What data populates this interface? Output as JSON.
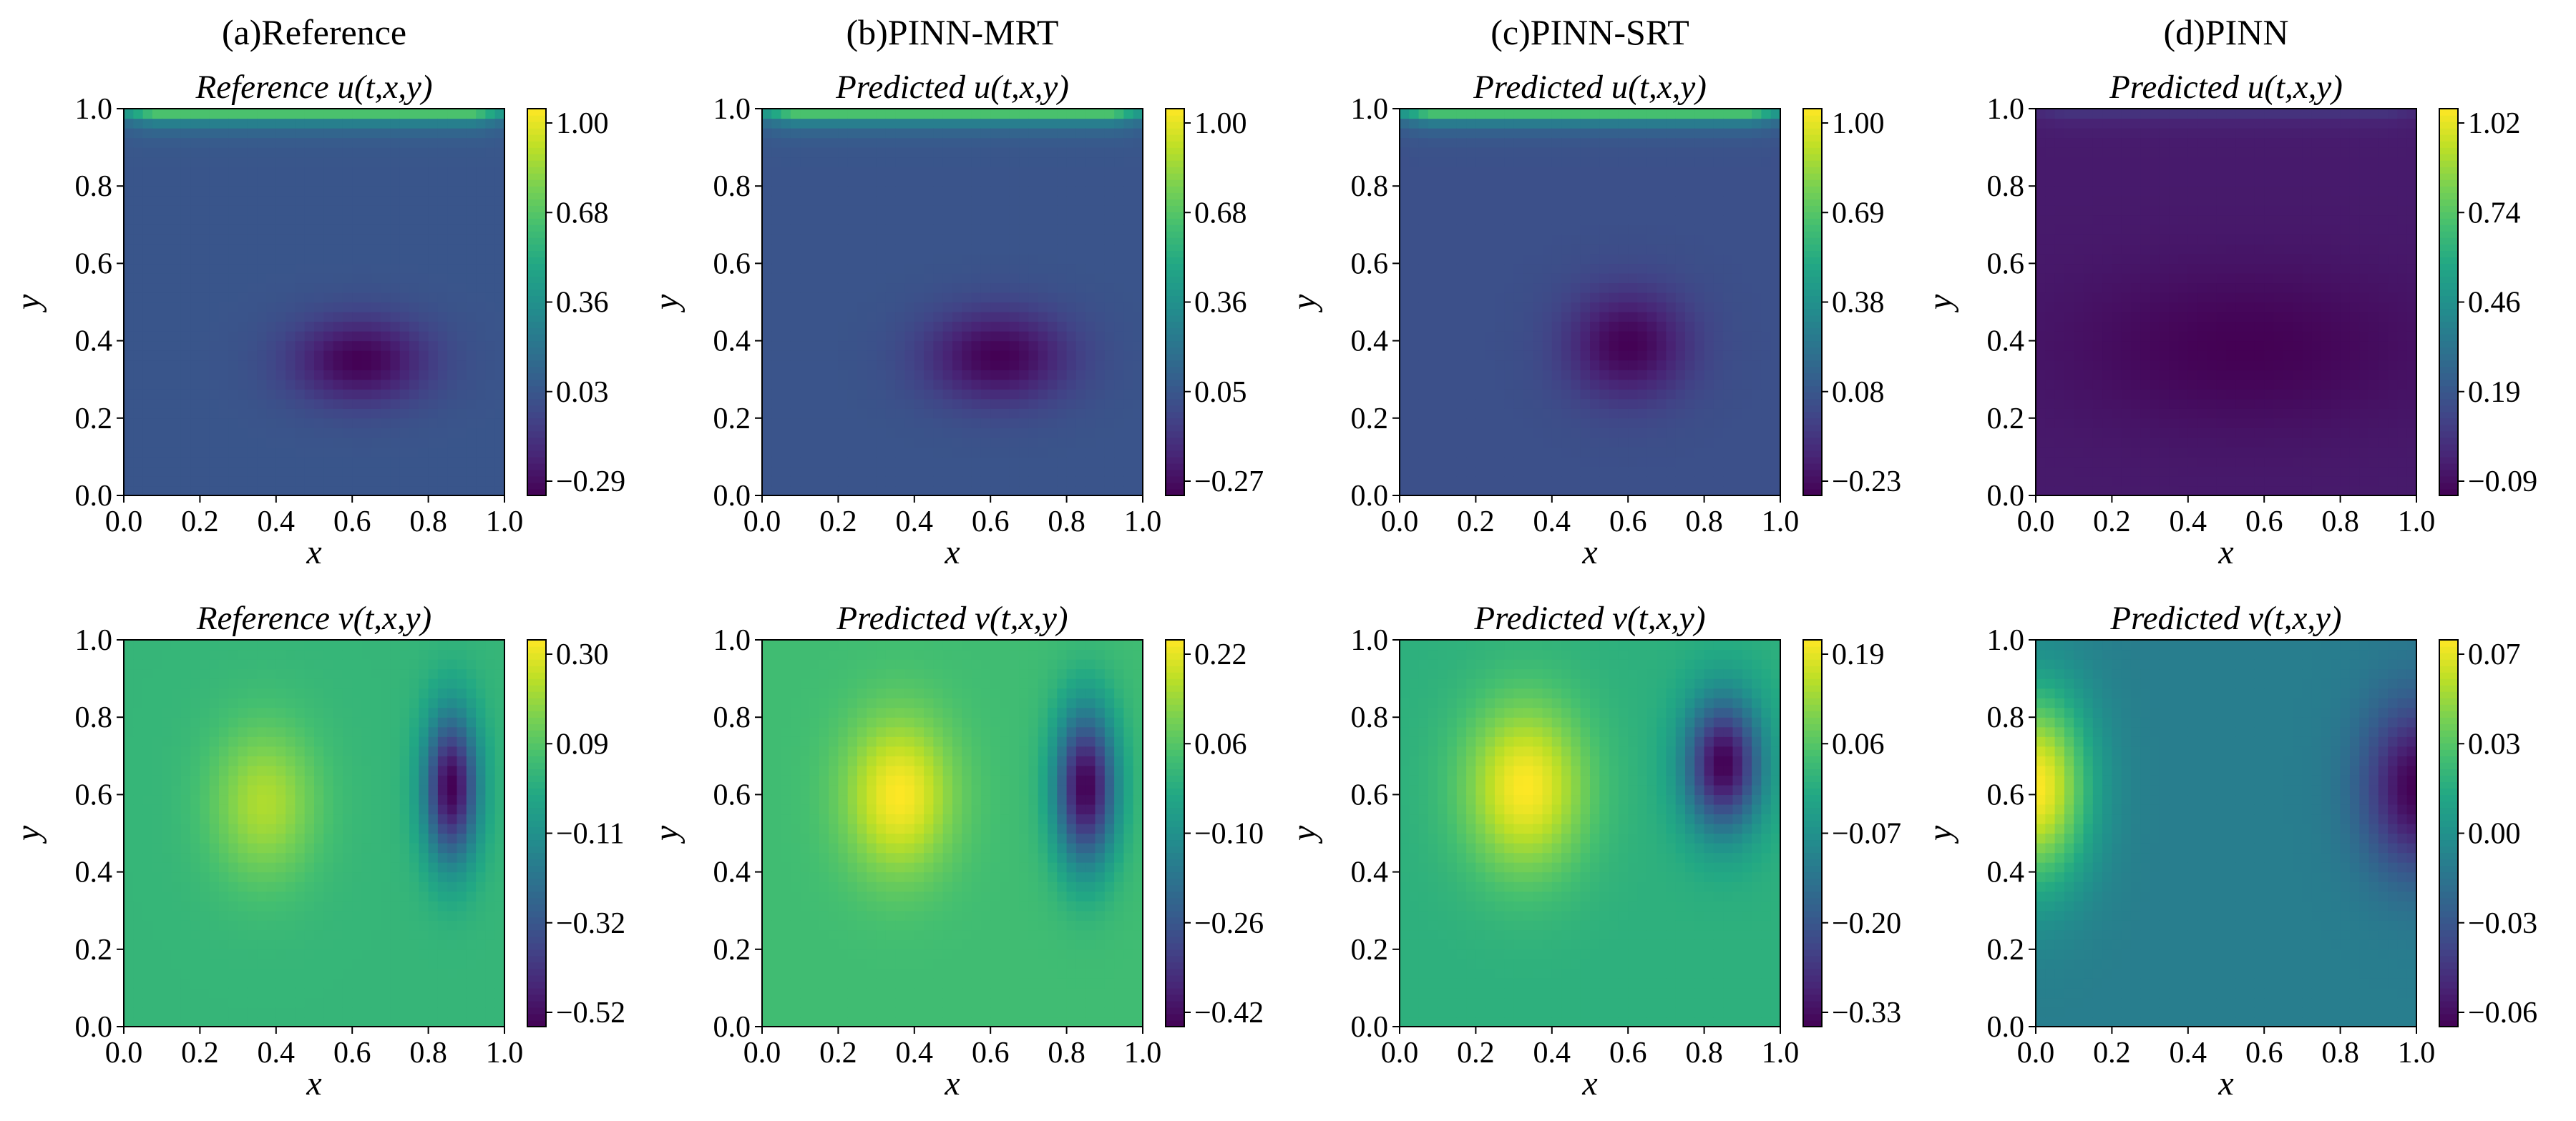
{
  "chart_data": {
    "type": "heatmap",
    "columns": [
      {
        "title": "(a)Reference",
        "panels": [
          {
            "title": "Reference u(t,x,y)",
            "xlabel": "x",
            "ylabel": "y",
            "xlim": [
              0,
              1
            ],
            "ylim": [
              0,
              1
            ],
            "xticks": [
              "0.0",
              "0.2",
              "0.4",
              "0.6",
              "0.8",
              "1.0"
            ],
            "yticks": [
              "0.0",
              "0.2",
              "0.4",
              "0.6",
              "0.8",
              "1.0"
            ],
            "colorbar_ticks": [
              "1.00",
              "0.68",
              "0.36",
              "0.03",
              "−0.29"
            ],
            "vmin": -0.29,
            "vmax": 1.0,
            "field": {
              "kind": "u",
              "vx": 0.62,
              "vy": 0.35,
              "sx": 0.18,
              "sy": 0.11,
              "min": -0.29,
              "base": 0.05,
              "lid": 1.0
            }
          },
          {
            "title": "Reference v(t,x,y)",
            "xlabel": "x",
            "ylabel": "y",
            "xlim": [
              0,
              1
            ],
            "ylim": [
              0,
              1
            ],
            "xticks": [
              "0.0",
              "0.2",
              "0.4",
              "0.6",
              "0.8",
              "1.0"
            ],
            "yticks": [
              "0.0",
              "0.2",
              "0.4",
              "0.6",
              "0.8",
              "1.0"
            ],
            "colorbar_ticks": [
              "0.30",
              "0.09",
              "−0.11",
              "−0.32",
              "−0.52"
            ],
            "vmin": -0.52,
            "vmax": 0.3,
            "field": {
              "kind": "v",
              "px": 0.37,
              "py": 0.58,
              "psx": 0.14,
              "psy": 0.2,
              "pmax": 0.2,
              "nx": 0.86,
              "ny": 0.62,
              "nsx": 0.07,
              "nsy": 0.19,
              "nmin": -0.52,
              "base": 0.02
            }
          }
        ]
      },
      {
        "title": "(b)PINN-MRT",
        "panels": [
          {
            "title": "Predicted u(t,x,y)",
            "xlabel": "x",
            "ylabel": "y",
            "xlim": [
              0,
              1
            ],
            "ylim": [
              0,
              1
            ],
            "xticks": [
              "0.0",
              "0.2",
              "0.4",
              "0.6",
              "0.8",
              "1.0"
            ],
            "yticks": [
              "0.0",
              "0.2",
              "0.4",
              "0.6",
              "0.8",
              "1.0"
            ],
            "colorbar_ticks": [
              "1.00",
              "0.68",
              "0.36",
              "0.05",
              "−0.27"
            ],
            "vmin": -0.27,
            "vmax": 1.0,
            "field": {
              "kind": "u",
              "vx": 0.62,
              "vy": 0.36,
              "sx": 0.19,
              "sy": 0.12,
              "min": -0.27,
              "base": 0.06,
              "lid": 1.0
            }
          },
          {
            "title": "Predicted v(t,x,y)",
            "xlabel": "x",
            "ylabel": "y",
            "xlim": [
              0,
              1
            ],
            "ylim": [
              0,
              1
            ],
            "xticks": [
              "0.0",
              "0.2",
              "0.4",
              "0.6",
              "0.8",
              "1.0"
            ],
            "yticks": [
              "0.0",
              "0.2",
              "0.4",
              "0.6",
              "0.8",
              "1.0"
            ],
            "colorbar_ticks": [
              "0.22",
              "0.06",
              "−0.10",
              "−0.26",
              "−0.42"
            ],
            "vmin": -0.42,
            "vmax": 0.22,
            "field": {
              "kind": "v",
              "px": 0.36,
              "py": 0.6,
              "psx": 0.14,
              "psy": 0.2,
              "pmax": 0.22,
              "nx": 0.85,
              "ny": 0.62,
              "nsx": 0.08,
              "nsy": 0.2,
              "nmin": -0.42,
              "base": 0.02
            }
          }
        ]
      },
      {
        "title": "(c)PINN-SRT",
        "panels": [
          {
            "title": "Predicted u(t,x,y)",
            "xlabel": "x",
            "ylabel": "y",
            "xlim": [
              0,
              1
            ],
            "ylim": [
              0,
              1
            ],
            "xticks": [
              "0.0",
              "0.2",
              "0.4",
              "0.6",
              "0.8",
              "1.0"
            ],
            "yticks": [
              "0.0",
              "0.2",
              "0.4",
              "0.6",
              "0.8",
              "1.0"
            ],
            "colorbar_ticks": [
              "1.00",
              "0.69",
              "0.38",
              "0.08",
              "−0.23"
            ],
            "vmin": -0.23,
            "vmax": 1.0,
            "field": {
              "kind": "u",
              "vx": 0.6,
              "vy": 0.39,
              "sx": 0.16,
              "sy": 0.14,
              "min": -0.23,
              "base": 0.07,
              "lid": 1.0
            }
          },
          {
            "title": "Predicted v(t,x,y)",
            "xlabel": "x",
            "ylabel": "y",
            "xlim": [
              0,
              1
            ],
            "ylim": [
              0,
              1
            ],
            "xticks": [
              "0.0",
              "0.2",
              "0.4",
              "0.6",
              "0.8",
              "1.0"
            ],
            "yticks": [
              "0.0",
              "0.2",
              "0.4",
              "0.6",
              "0.8",
              "1.0"
            ],
            "colorbar_ticks": [
              "0.19",
              "0.06",
              "−0.07",
              "−0.20",
              "−0.33"
            ],
            "vmin": -0.33,
            "vmax": 0.19,
            "field": {
              "kind": "v",
              "px": 0.33,
              "py": 0.62,
              "psx": 0.16,
              "psy": 0.22,
              "pmax": 0.19,
              "nx": 0.85,
              "ny": 0.68,
              "nsx": 0.1,
              "nsy": 0.17,
              "nmin": -0.33,
              "base": 0.0
            }
          }
        ]
      },
      {
        "title": "(d)PINN",
        "panels": [
          {
            "title": "Predicted u(t,x,y)",
            "xlabel": "x",
            "ylabel": "y",
            "xlim": [
              0,
              1
            ],
            "ylim": [
              0,
              1
            ],
            "xticks": [
              "0.0",
              "0.2",
              "0.4",
              "0.6",
              "0.8",
              "1.0"
            ],
            "yticks": [
              "0.0",
              "0.2",
              "0.4",
              "0.6",
              "0.8",
              "1.0"
            ],
            "colorbar_ticks": [
              "1.02",
              "0.74",
              "0.46",
              "0.19",
              "−0.09"
            ],
            "vmin": -0.09,
            "vmax": 1.02,
            "field": {
              "kind": "u",
              "vx": 0.55,
              "vy": 0.38,
              "sx": 0.45,
              "sy": 0.2,
              "min": -0.09,
              "base": -0.01,
              "lid": 0.12
            }
          },
          {
            "title": "Predicted v(t,x,y)",
            "xlabel": "x",
            "ylabel": "y",
            "xlim": [
              0,
              1
            ],
            "ylim": [
              0,
              1
            ],
            "xticks": [
              "0.0",
              "0.2",
              "0.4",
              "0.6",
              "0.8",
              "1.0"
            ],
            "yticks": [
              "0.0",
              "0.2",
              "0.4",
              "0.6",
              "0.8",
              "1.0"
            ],
            "colorbar_ticks": [
              "0.07",
              "0.03",
              "0.00",
              "−0.03",
              "−0.06"
            ],
            "vmin": -0.06,
            "vmax": 0.07,
            "field": {
              "kind": "v",
              "px": 0.0,
              "py": 0.62,
              "psx": 0.14,
              "psy": 0.25,
              "pmax": 0.07,
              "nx": 1.0,
              "ny": 0.62,
              "nsx": 0.14,
              "nsy": 0.22,
              "nmin": -0.06,
              "base": -0.005
            }
          }
        ]
      }
    ]
  }
}
